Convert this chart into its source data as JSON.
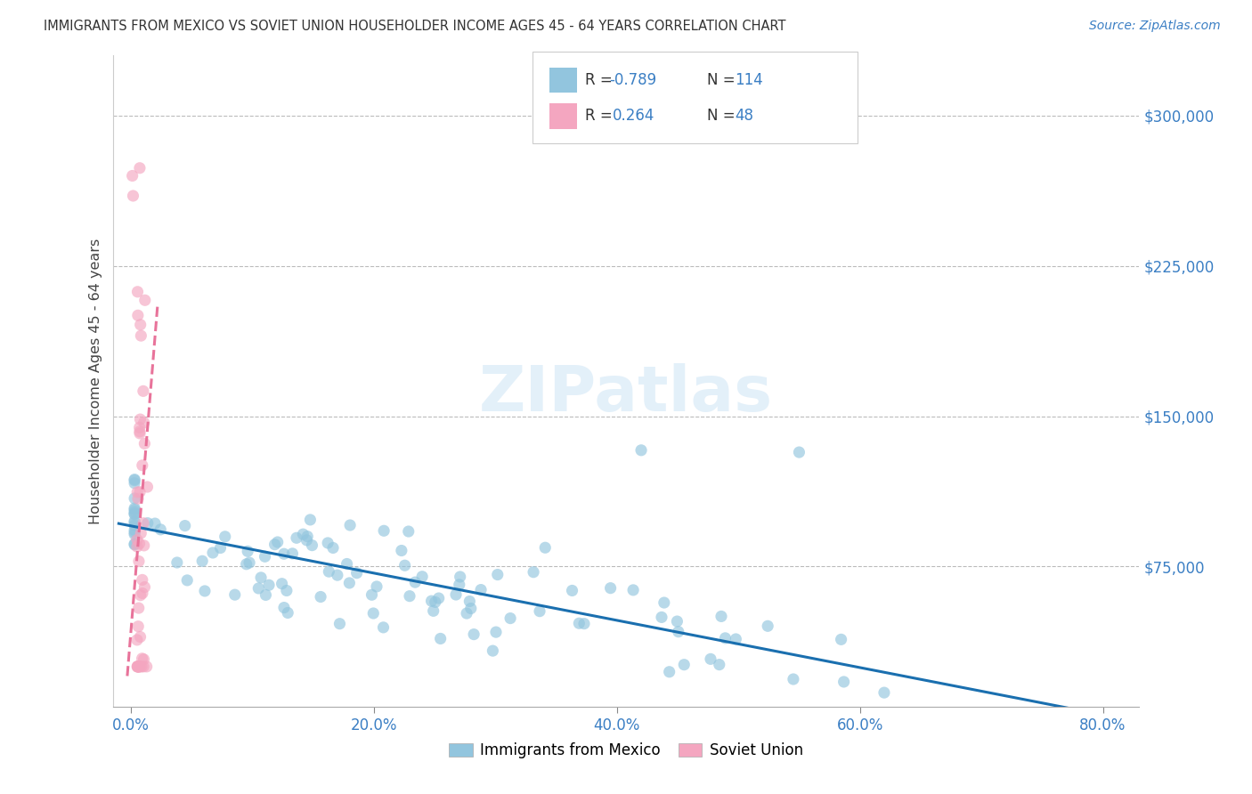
{
  "title": "IMMIGRANTS FROM MEXICO VS SOVIET UNION HOUSEHOLDER INCOME AGES 45 - 64 YEARS CORRELATION CHART",
  "source": "Source: ZipAtlas.com",
  "ylabel_label": "Householder Income Ages 45 - 64 years",
  "legend_label_blue": "Immigrants from Mexico",
  "legend_label_pink": "Soviet Union",
  "blue_color": "#92c5de",
  "pink_color": "#f4a6c0",
  "blue_line_color": "#1a6faf",
  "pink_line_color": "#e8739a",
  "title_color": "#333333",
  "axis_label_color": "#444444",
  "tick_color": "#3b7fc4",
  "grid_color": "#bbbbbb",
  "blue_R": -0.789,
  "blue_N": 114,
  "pink_R": 0.264,
  "pink_N": 48,
  "ylabel_tick_vals": [
    75000,
    150000,
    225000,
    300000
  ],
  "ylabel_ticks": [
    "$75,000",
    "$150,000",
    "$225,000",
    "$300,000"
  ],
  "xlabel_tick_vals": [
    0,
    20,
    40,
    60,
    80
  ],
  "xlabel_ticks": [
    "0.0%",
    "20.0%",
    "40.0%",
    "60.0%",
    "80.0%"
  ],
  "xlim": [
    -1.5,
    83
  ],
  "ylim": [
    5000,
    330000
  ]
}
